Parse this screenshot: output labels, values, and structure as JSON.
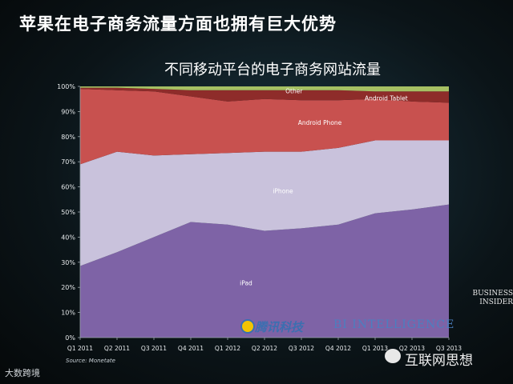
{
  "slide": {
    "title": "苹果在电子商务流量方面也拥有巨大优势"
  },
  "watermarks": {
    "left": "大数跨境",
    "right": "互联网思想",
    "bi_logo": "BUSINESS INSIDER",
    "tencent": "腾讯科技",
    "bi_intelligence": "BI INTELLIGENCE"
  },
  "source": "Source: Monetate",
  "chart_data": {
    "type": "area",
    "stacked": true,
    "title": "不同移动平台的电子商务网站流量",
    "categories": [
      "Q1 2011",
      "Q2 2011",
      "Q3 2011",
      "Q4 2011",
      "Q1 2012",
      "Q2 2012",
      "Q3 2012",
      "Q4 2012",
      "Q1 2013",
      "Q2 2013",
      "Q3 2013"
    ],
    "y_ticks": [
      "0%",
      "10%",
      "20%",
      "30%",
      "40%",
      "50%",
      "60%",
      "70%",
      "80%",
      "90%",
      "100%"
    ],
    "ylim": [
      0,
      100
    ],
    "grid": false,
    "series": [
      {
        "name": "iPad",
        "color": "#7e63a6",
        "values": [
          28.5,
          34,
          40,
          46,
          45,
          42.5,
          43.5,
          45,
          49.5,
          51,
          53
        ]
      },
      {
        "name": "iPhone",
        "color": "#c9c2dc",
        "values": [
          40.5,
          40,
          32.5,
          27,
          28.5,
          31.5,
          30.5,
          30.5,
          29,
          27.5,
          25.5
        ]
      },
      {
        "name": "Android Phone",
        "color": "#c8514f",
        "values": [
          30,
          24.5,
          25.5,
          23,
          20.5,
          21,
          20.5,
          19,
          16.5,
          15.5,
          15
        ]
      },
      {
        "name": "Android Tablet",
        "color": "#8e2c2a",
        "values": [
          0.5,
          1,
          1,
          2.5,
          4.5,
          3.5,
          4,
          4,
          3,
          4,
          4.5
        ]
      },
      {
        "name": "Other",
        "color": "#a6c063",
        "values": [
          0.5,
          0.5,
          1,
          1.5,
          1.5,
          1.5,
          1.5,
          1.5,
          2,
          2,
          2
        ]
      }
    ]
  }
}
